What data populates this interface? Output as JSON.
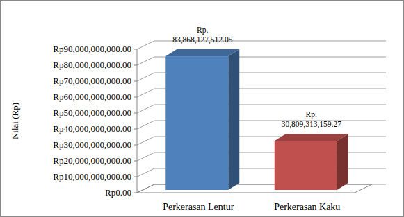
{
  "chart_data": {
    "type": "bar",
    "y_label": "Nilai (Rp)",
    "categories": [
      "Perkerasan Lentur",
      "Perkerasan Kaku"
    ],
    "values": [
      83868127512.05,
      30809313159.27
    ],
    "value_labels": [
      "Rp. 83,868,127,512.05",
      "Rp. 30,809,313,159.27"
    ],
    "colors": [
      "#4f81bd",
      "#c0504d"
    ],
    "ylim": [
      0,
      90000000000
    ],
    "yticks": [
      {
        "value": 0,
        "label": "Rp0.00"
      },
      {
        "value": 10000000000,
        "label": "Rp10,000,000,000.00"
      },
      {
        "value": 20000000000,
        "label": "Rp20,000,000,000.00"
      },
      {
        "value": 30000000000,
        "label": "Rp30,000,000,000.00"
      },
      {
        "value": 40000000000,
        "label": "Rp40,000,000,000.00"
      },
      {
        "value": 50000000000,
        "label": "Rp50,000,000,000.00"
      },
      {
        "value": 60000000000,
        "label": "Rp60,000,000,000.00"
      },
      {
        "value": 70000000000,
        "label": "Rp70,000,000,000.00"
      },
      {
        "value": 80000000000,
        "label": "Rp80,000,000,000.00"
      },
      {
        "value": 90000000000,
        "label": "Rp90,000,000,000.00"
      }
    ],
    "grid": true,
    "data_labels": true
  }
}
